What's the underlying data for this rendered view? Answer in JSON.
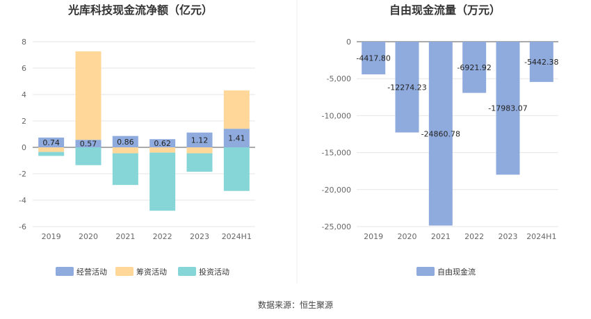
{
  "source": "数据来源：恒生聚源",
  "chart_data": [
    {
      "type": "bar",
      "stacked": true,
      "title": "光库科技现金流净额（亿元）",
      "categories": [
        "2019",
        "2020",
        "2021",
        "2022",
        "2023",
        "2024H1"
      ],
      "ylim": [
        -6,
        8
      ],
      "yticks": [
        -6,
        -4,
        -2,
        0,
        2,
        4,
        6,
        8
      ],
      "series": [
        {
          "name": "经营活动",
          "color": "#8faadc",
          "values": [
            0.74,
            0.57,
            0.86,
            0.62,
            1.12,
            1.41
          ]
        },
        {
          "name": "筹资活动",
          "color": "#ffd899",
          "values": [
            -0.35,
            6.7,
            -0.45,
            -0.4,
            -0.45,
            2.9
          ]
        },
        {
          "name": "投资活动",
          "color": "#86d6d8",
          "values": [
            -0.3,
            -1.35,
            -2.4,
            -4.4,
            -1.4,
            -3.3
          ]
        }
      ],
      "data_labels": [
        "0.74",
        "0.57",
        "0.86",
        "0.62",
        "1.12",
        "1.41"
      ],
      "legend": [
        "经营活动",
        "筹资活动",
        "投资活动"
      ]
    },
    {
      "type": "bar",
      "title": "自由现金流量（万元）",
      "categories": [
        "2019",
        "2020",
        "2021",
        "2022",
        "2023",
        "2024H1"
      ],
      "ylim": [
        -25000,
        0
      ],
      "yticks": [
        0,
        -5000,
        -10000,
        -15000,
        -20000,
        -25000
      ],
      "ytick_labels": [
        "0",
        "-5,000",
        "-10,000",
        "-15,000",
        "-20,000",
        "-25,000"
      ],
      "series": [
        {
          "name": "自由现金流",
          "color": "#8faadc",
          "values": [
            -4417.8,
            -12274.23,
            -24860.78,
            -6921.92,
            -17983.07,
            -5442.38
          ]
        }
      ],
      "data_labels": [
        "-4417.80",
        "-12274.23",
        "-24860.78",
        "-6921.92",
        "-17983.07",
        "-5442.38"
      ],
      "legend": [
        "自由现金流"
      ]
    }
  ]
}
